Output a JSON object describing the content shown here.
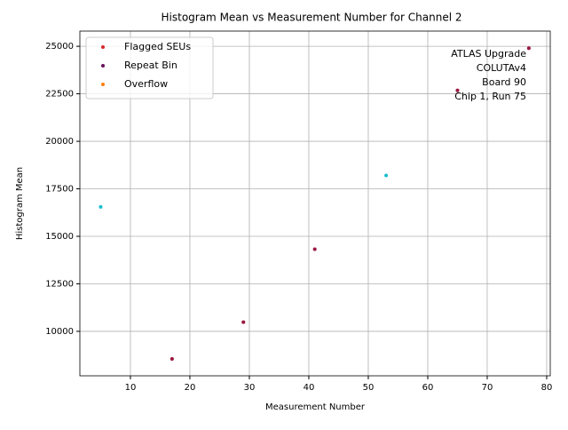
{
  "chart_data": {
    "type": "scatter",
    "title": "Histogram Mean vs Measurement Number for Channel 2",
    "x_label": "Measurement Number",
    "y_label": "Histogram Mean",
    "annotation": [
      "ATLAS Upgrade",
      "COLUTAv4",
      "Board 90",
      "Chip 1, Run 75"
    ],
    "series": [
      {
        "name": "Flagged SEUs",
        "color": "#d62728",
        "x": [
          17,
          29,
          41,
          65,
          77
        ],
        "values": [
          8550,
          10480,
          14320,
          22680,
          24900
        ]
      },
      {
        "name": "Repeat Bin",
        "color": "#6b0f5a",
        "x": [
          17,
          29,
          41,
          65,
          77
        ],
        "values": [
          8550,
          10480,
          14320,
          22680,
          24900
        ]
      },
      {
        "name": "Overflow",
        "color": "#ff7f0e",
        "x": [],
        "values": []
      },
      {
        "color": "#17becf",
        "x": [
          5,
          53
        ],
        "values": [
          16550,
          18200
        ]
      }
    ],
    "xlim": [
      1.5,
      80.6
    ],
    "xticks": [
      10,
      20,
      30,
      40,
      50,
      60,
      70,
      80
    ],
    "ylim": [
      7660,
      25800
    ],
    "yticks": [
      10000,
      12500,
      15000,
      17500,
      20000,
      22500,
      25000
    ],
    "grid": true,
    "legend": "upper left"
  }
}
